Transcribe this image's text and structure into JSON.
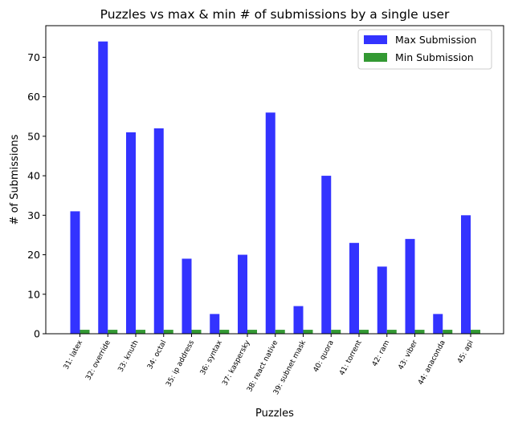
{
  "chart_data": {
    "type": "bar",
    "title": "Puzzles vs max & min # of submissions by a single user",
    "xlabel": "Puzzles",
    "ylabel": "# of Submissions",
    "ylim": [
      0,
      78
    ],
    "yticks": [
      0,
      10,
      20,
      30,
      40,
      50,
      60,
      70
    ],
    "grid": false,
    "legend_position": "top-right",
    "categories": [
      "31: latex",
      "32: override",
      "33: knuth",
      "34: octal",
      "35: ip address",
      "36: syntax",
      "37: kaspersky",
      "38: react native",
      "39: subnet mask",
      "40: quora",
      "41: torrent",
      "42: ram",
      "43: viber",
      "44: anaconda",
      "45: api"
    ],
    "series": [
      {
        "name": "Max Submission",
        "color": "#3333ff",
        "values": [
          31,
          74,
          51,
          52,
          19,
          5,
          20,
          56,
          7,
          40,
          23,
          17,
          24,
          5,
          30
        ]
      },
      {
        "name": "Min Submission",
        "color": "#339933",
        "values": [
          1,
          1,
          1,
          1,
          1,
          1,
          1,
          1,
          1,
          1,
          1,
          1,
          1,
          1,
          1
        ]
      }
    ]
  }
}
